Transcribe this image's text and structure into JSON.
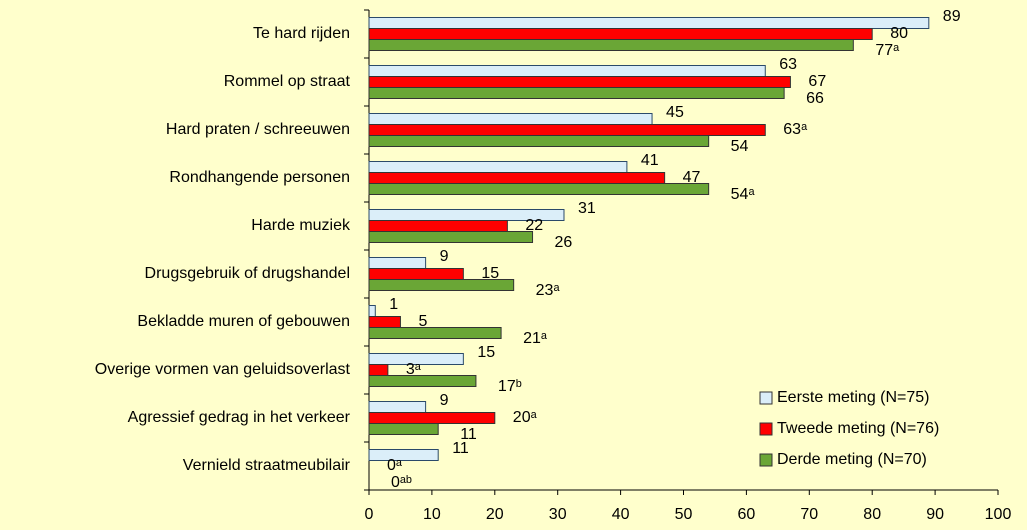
{
  "chart_data": {
    "type": "hbar",
    "categories": [
      "Te hard rijden",
      "Rommel op straat",
      "Hard praten / schreeuwen",
      "Rondhangende personen",
      "Harde muziek",
      "Drugsgebruik of drugshandel",
      "Bekladde muren of gebouwen",
      "Overige vormen van geluidsoverlast",
      "Agressief gedrag in het verkeer",
      "Vernield straatmeubilair"
    ],
    "series": [
      {
        "name": "Eerste meting (N=75)",
        "color": "#dbeef9",
        "values": [
          89,
          63,
          45,
          41,
          31,
          9,
          1,
          15,
          9,
          11
        ],
        "value_labels": [
          "89",
          "63",
          "45",
          "41",
          "31",
          "9",
          "1",
          "15",
          "9",
          "11"
        ]
      },
      {
        "name": "Tweede meting (N=76)",
        "color": "#ff0000",
        "values": [
          80,
          67,
          63,
          47,
          22,
          15,
          5,
          3,
          20,
          0
        ],
        "value_labels": [
          "80",
          "67",
          "63ᵃ",
          "47",
          "22",
          "15",
          "5",
          "3ᵃ",
          "20ᵃ",
          "0ᵃ"
        ]
      },
      {
        "name": "Derde meting (N=70)",
        "color": "#6aa636",
        "values": [
          77,
          66,
          54,
          54,
          26,
          23,
          21,
          17,
          11,
          0
        ],
        "value_labels": [
          "77ᵃ",
          "66",
          "54",
          "54ᵃ",
          "26",
          "23ᵃ",
          "21ᵃ",
          "17ᵇ",
          "11",
          "0ᵃᵇ"
        ]
      }
    ],
    "xlim": [
      0,
      100
    ],
    "xticks": [
      0,
      10,
      20,
      30,
      40,
      50,
      60,
      70,
      80,
      90,
      100
    ],
    "legend": "lower right"
  }
}
